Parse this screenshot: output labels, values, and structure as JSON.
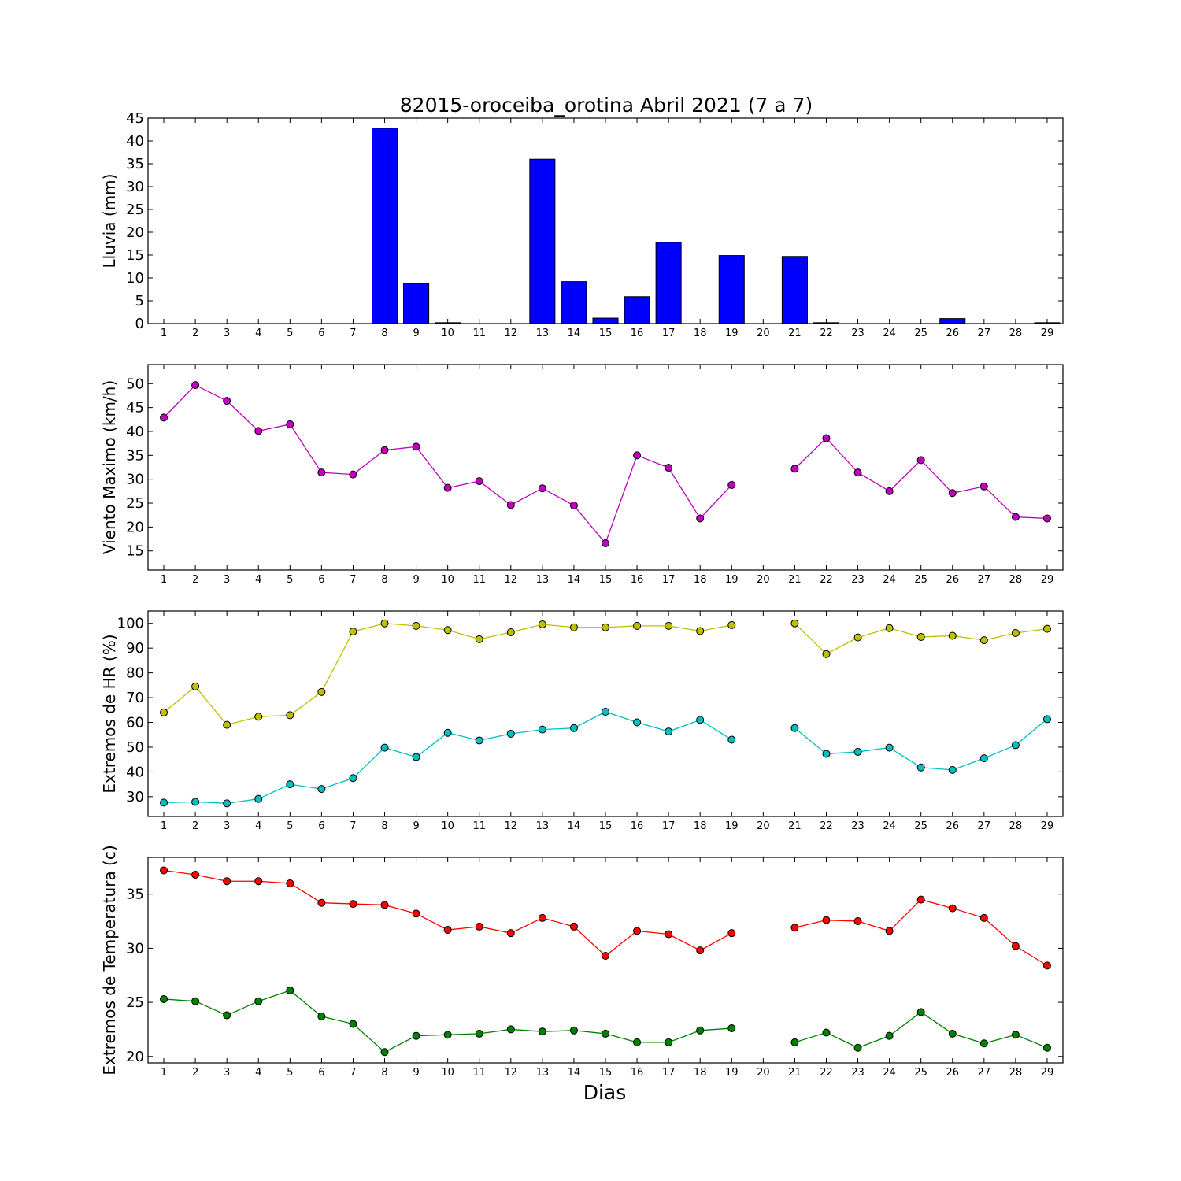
{
  "title": "82015-oroceiba_orotina Abril 2021  (7 a 7)",
  "xlabel": "Dias",
  "chart_data": [
    {
      "type": "bar",
      "ylabel": "Lluvia (mm)",
      "ylim": [
        0,
        45
      ],
      "yticks": [
        0,
        5,
        10,
        15,
        20,
        25,
        30,
        35,
        40,
        45
      ],
      "grid": false,
      "color": "#0000ff",
      "categories": [
        1,
        2,
        3,
        4,
        5,
        6,
        7,
        8,
        9,
        10,
        11,
        12,
        13,
        14,
        15,
        16,
        17,
        18,
        19,
        20,
        21,
        22,
        23,
        24,
        25,
        26,
        27,
        28,
        29
      ],
      "values": [
        0,
        0,
        0,
        0,
        0,
        0,
        0,
        42.8,
        8.8,
        0.2,
        0,
        0,
        36.0,
        9.2,
        1.2,
        5.9,
        17.8,
        0,
        14.9,
        null,
        14.7,
        0.2,
        0,
        0,
        0,
        1.1,
        0,
        0,
        0.2
      ]
    },
    {
      "type": "line",
      "ylabel": "Viento Maximo (km/h)",
      "ylim": [
        11,
        54
      ],
      "yticks": [
        15,
        20,
        25,
        30,
        35,
        40,
        45,
        50
      ],
      "grid": false,
      "x": [
        1,
        2,
        3,
        4,
        5,
        6,
        7,
        8,
        9,
        10,
        11,
        12,
        13,
        14,
        15,
        16,
        17,
        18,
        19,
        20,
        21,
        22,
        23,
        24,
        25,
        26,
        27,
        28,
        29
      ],
      "series": [
        {
          "color": "#bf00bf",
          "values": [
            42.9,
            49.7,
            46.4,
            40.1,
            41.5,
            31.4,
            31.0,
            36.1,
            36.8,
            28.2,
            29.6,
            24.6,
            28.1,
            24.5,
            16.6,
            35.0,
            32.4,
            21.8,
            28.8,
            null,
            32.2,
            38.6,
            31.4,
            27.5,
            34.0,
            27.1,
            28.5,
            22.1,
            21.8
          ]
        }
      ]
    },
    {
      "type": "line",
      "ylabel": "Extremos de HR (%)",
      "ylim": [
        22,
        105
      ],
      "yticks": [
        30,
        40,
        50,
        60,
        70,
        80,
        90,
        100
      ],
      "grid": false,
      "x": [
        1,
        2,
        3,
        4,
        5,
        6,
        7,
        8,
        9,
        10,
        11,
        12,
        13,
        14,
        15,
        16,
        17,
        18,
        19,
        20,
        21,
        22,
        23,
        24,
        25,
        26,
        27,
        28,
        29
      ],
      "series": [
        {
          "color": "#bfbf00",
          "values": [
            64.0,
            74.5,
            59.0,
            62.3,
            62.9,
            72.3,
            96.7,
            100.0,
            99.0,
            97.3,
            93.6,
            96.4,
            99.6,
            98.4,
            98.4,
            99.0,
            99.0,
            96.9,
            99.3,
            null,
            100.0,
            87.6,
            94.3,
            98.1,
            94.5,
            95.0,
            93.2,
            96.1,
            97.8
          ]
        },
        {
          "color": "#00bfbf",
          "values": [
            27.6,
            27.9,
            27.3,
            29.1,
            35.0,
            33.1,
            37.5,
            49.8,
            46.0,
            55.8,
            52.7,
            55.4,
            57.1,
            57.7,
            64.3,
            60.0,
            56.3,
            61.0,
            53.0,
            null,
            57.7,
            47.3,
            48.1,
            49.8,
            41.8,
            40.8,
            45.5,
            50.8,
            61.3
          ]
        }
      ]
    },
    {
      "type": "line",
      "ylabel": "Extremos de Temperatura (c)",
      "ylim": [
        19.4,
        38.4
      ],
      "yticks": [
        20,
        25,
        30,
        35
      ],
      "grid": false,
      "x": [
        1,
        2,
        3,
        4,
        5,
        6,
        7,
        8,
        9,
        10,
        11,
        12,
        13,
        14,
        15,
        16,
        17,
        18,
        19,
        20,
        21,
        22,
        23,
        24,
        25,
        26,
        27,
        28,
        29
      ],
      "series": [
        {
          "color": "#ff0000",
          "values": [
            37.2,
            36.8,
            36.2,
            36.2,
            36.0,
            34.2,
            34.1,
            34.0,
            33.2,
            31.7,
            32.0,
            31.4,
            32.8,
            32.0,
            29.3,
            31.6,
            31.3,
            29.8,
            31.4,
            null,
            31.9,
            32.6,
            32.5,
            31.6,
            34.5,
            33.7,
            32.8,
            30.2,
            28.4
          ]
        },
        {
          "color": "#008000",
          "values": [
            25.3,
            25.1,
            23.8,
            25.1,
            26.1,
            23.7,
            23.0,
            20.4,
            21.9,
            22.0,
            22.1,
            22.5,
            22.3,
            22.4,
            22.1,
            21.3,
            21.3,
            22.4,
            22.6,
            null,
            21.3,
            22.2,
            20.8,
            21.9,
            24.1,
            22.1,
            21.2,
            22.0,
            20.8
          ]
        }
      ]
    }
  ]
}
